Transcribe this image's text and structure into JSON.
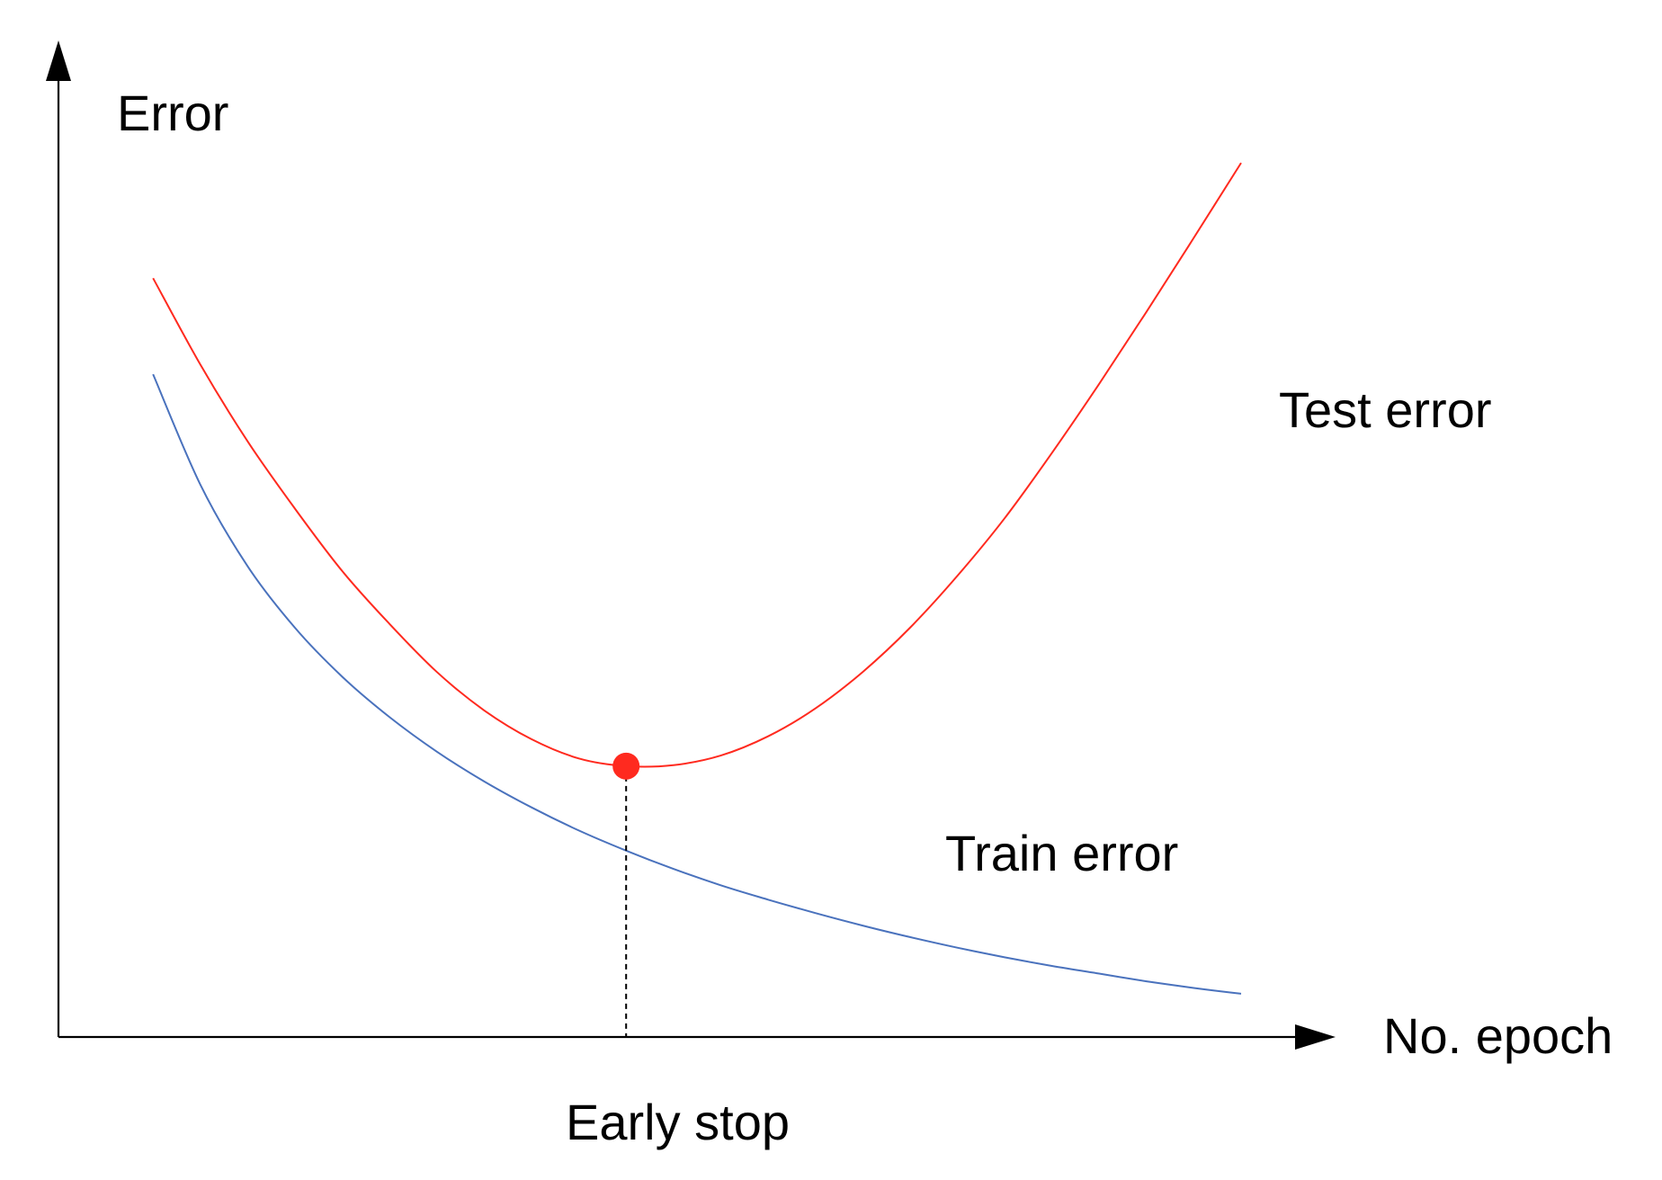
{
  "chart_data": {
    "type": "line",
    "title": "",
    "xlabel": "No. epoch",
    "ylabel": "Error",
    "xlim": [
      0,
      100
    ],
    "ylim": [
      0,
      100
    ],
    "grid": false,
    "legend": "none",
    "series": [
      {
        "name": "Test error",
        "color": "#ff2a1f",
        "x": [
          8,
          12,
          16,
          20,
          24,
          28,
          32,
          36,
          40,
          44,
          48,
          52,
          56,
          60,
          64,
          68,
          72,
          76,
          80,
          84,
          88,
          92,
          96,
          100
        ],
        "y": [
          79,
          70,
          62,
          55,
          48.5,
          43,
          38,
          34,
          31,
          29,
          28.2,
          28.3,
          29.3,
          31.3,
          34.2,
          38,
          42.6,
          48,
          54,
          60.8,
          68,
          75.5,
          83.2,
          91
        ]
      },
      {
        "name": "Train error",
        "color": "#4a72bd",
        "x": [
          8,
          12,
          16,
          20,
          24,
          28,
          32,
          36,
          40,
          44,
          48,
          52,
          56,
          60,
          64,
          68,
          72,
          76,
          80,
          84,
          88,
          92,
          96,
          100
        ],
        "y": [
          69,
          57.5,
          49,
          42.6,
          37.5,
          33.3,
          29.7,
          26.6,
          23.9,
          21.5,
          19.4,
          17.5,
          15.8,
          14.3,
          12.9,
          11.6,
          10.4,
          9.3,
          8.3,
          7.4,
          6.6,
          5.8,
          5.1,
          4.5
        ]
      }
    ],
    "marker": {
      "label": "Early stop",
      "x": 48,
      "y": 28.2,
      "color": "#ff2a1f"
    }
  }
}
